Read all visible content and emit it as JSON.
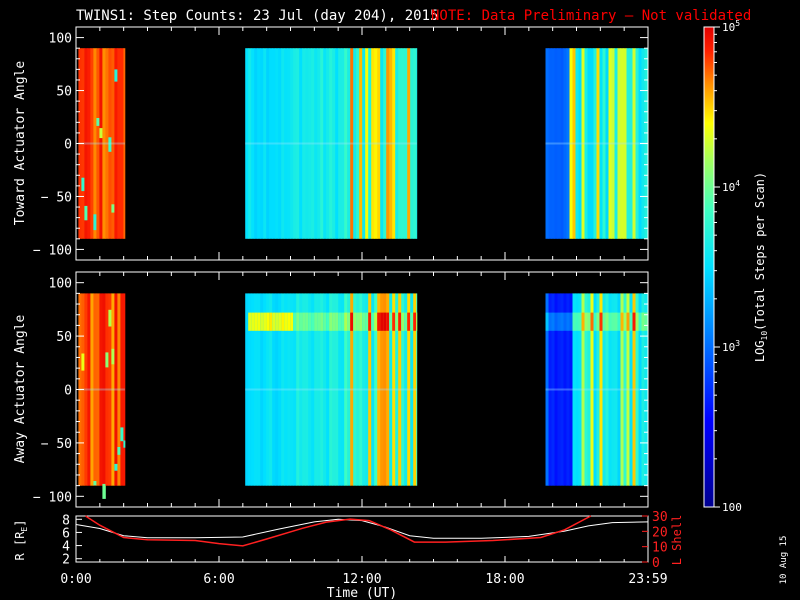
{
  "title": {
    "main": "TWINS1: Step Counts: 23 Jul (day 204), 2015",
    "note": "NOTE: Data Preliminary — Not validated"
  },
  "stamp": "10 Aug 15",
  "colors": {
    "background": "#000000",
    "axes": "#ffffff",
    "note": "#ff0000",
    "lshell": "#ff2020",
    "radius": "#ffffff"
  },
  "chart_data": [
    {
      "id": "toward",
      "type": "heatmap",
      "ylabel": "Toward Actuator Angle",
      "ylim": [
        -110,
        110
      ],
      "yticks": [
        100,
        50,
        0,
        -50,
        -100
      ],
      "ytick_labels": [
        "100",
        "50",
        "0",
        "− 50",
        "− 100"
      ],
      "data_angle_range": [
        -90,
        90
      ],
      "xlim_hours": [
        0,
        24
      ],
      "data_intervals_hours": [
        [
          0.1,
          2.05
        ],
        [
          7.1,
          14.3
        ],
        [
          19.7,
          24.0
        ]
      ],
      "feature": "bright red/orange vertical bands early (0:10–2:00), mostly cyan/blue with yellow-orange bands near 11:30–14:00 and 20:30–23:00"
    },
    {
      "id": "away",
      "type": "heatmap",
      "ylabel": "Away Actuator Angle",
      "ylim": [
        -110,
        110
      ],
      "yticks": [
        100,
        50,
        0,
        -50,
        -100
      ],
      "ytick_labels": [
        "100",
        "50",
        "0",
        "− 50",
        "− 100"
      ],
      "data_angle_range": [
        -90,
        90
      ],
      "xlim_hours": [
        0,
        24
      ],
      "data_intervals_hours": [
        [
          0.1,
          2.05
        ],
        [
          7.1,
          14.3
        ],
        [
          19.7,
          24.0
        ]
      ],
      "feature": "enhanced yellow-green band near +65 deg after 7:00; dark blue region 19:40–20:40"
    },
    {
      "id": "orbit",
      "type": "line",
      "ylabel_left": "R [R",
      "ylabel_left_sub": "E",
      "ylabel_left_end": "]",
      "ylabel_right": "L Shell",
      "ylim_left": [
        1.5,
        8.5
      ],
      "yticks_left": [
        "8",
        "6",
        "4",
        "2"
      ],
      "ylim_right": [
        0,
        30
      ],
      "yticks_right": [
        "30",
        "20",
        "10",
        "0"
      ],
      "xlabel": "Time (UT)",
      "xticks": [
        "0:00",
        "6:00",
        "12:00",
        "18:00",
        "23:59"
      ],
      "series": [
        {
          "name": "R",
          "axis": "left",
          "x": [
            0,
            1,
            2,
            3,
            5,
            7,
            8.5,
            10,
            11,
            12,
            13,
            14,
            15,
            17,
            19,
            20.5,
            21.5,
            22.5,
            24
          ],
          "y": [
            7.2,
            6.6,
            5.5,
            5.2,
            5.2,
            5.3,
            6.5,
            7.6,
            8.0,
            7.8,
            6.8,
            5.5,
            5.1,
            5.1,
            5.4,
            6.2,
            7.0,
            7.5,
            7.6
          ]
        },
        {
          "name": "L Shell",
          "axis": "right",
          "x": [
            0.4,
            1.0,
            2.0,
            3.0,
            5.0,
            6.0,
            7.0,
            8.0,
            9.5,
            10.5,
            11.5,
            12.3,
            13.2,
            14.2,
            15.5,
            17.5,
            19.5,
            20.5,
            21.6
          ],
          "y": [
            30,
            24,
            16,
            14.5,
            14,
            12,
            10.5,
            15,
            22,
            26,
            28,
            27,
            21,
            13,
            13,
            14,
            16,
            21,
            30
          ]
        }
      ]
    }
  ],
  "colorbar": {
    "label_prefix": "LOG",
    "label_sub": "10",
    "label_suffix": "(Total Steps per Scan)",
    "ticks": [
      {
        "base": "10",
        "exp": "5",
        "log": 5
      },
      {
        "base": "10",
        "exp": "4",
        "log": 4
      },
      {
        "base": "10",
        "exp": "3",
        "log": 3
      },
      {
        "base": "100",
        "exp": "",
        "log": 2
      }
    ],
    "range_log": [
      2,
      5
    ]
  }
}
